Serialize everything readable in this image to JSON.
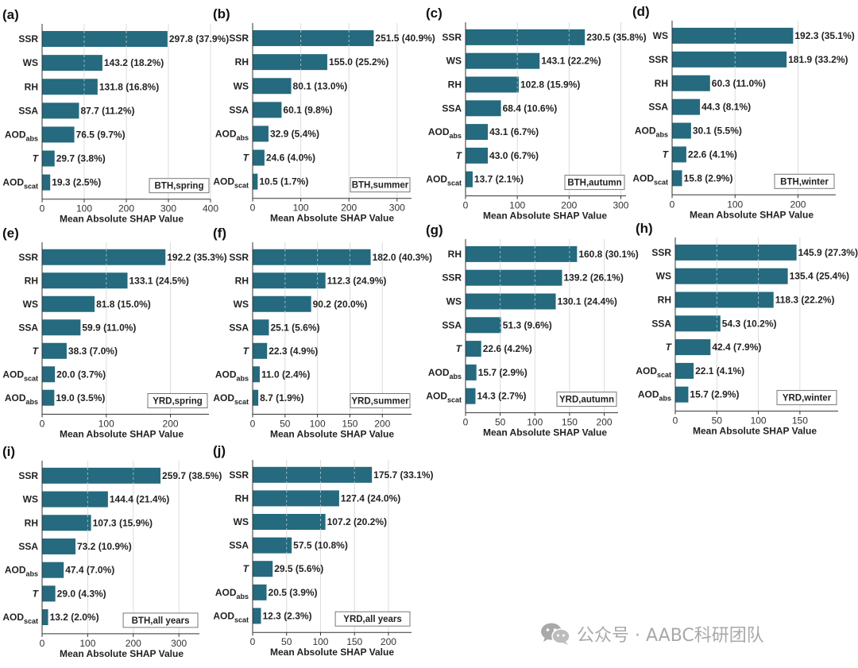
{
  "colors": {
    "bar": "#256a7e",
    "axis": "#333333",
    "grid": "#dcdcdc",
    "tag_border": "#777777",
    "watermark": "#a9a9a9"
  },
  "watermark": {
    "text": "公众号 · AABC科研团队",
    "icon": "wechat-icon"
  },
  "chart_data": [
    {
      "id": "a",
      "panel_label": "(a)",
      "type": "bar",
      "orientation": "horizontal",
      "tag": "BTH,spring",
      "xlabel": "Mean Absolute SHAP Value",
      "xlim": [
        0,
        400
      ],
      "xticks": [
        0,
        100,
        200,
        300,
        400
      ],
      "grid": true,
      "categories": [
        {
          "base": "SSR",
          "sub": ""
        },
        {
          "base": "WS",
          "sub": ""
        },
        {
          "base": "RH",
          "sub": ""
        },
        {
          "base": "SSA",
          "sub": ""
        },
        {
          "base": "AOD",
          "sub": "abs"
        },
        {
          "base": "T",
          "sub": "",
          "italic": true
        },
        {
          "base": "AOD",
          "sub": "scat"
        }
      ],
      "values": [
        297.8,
        143.2,
        131.8,
        87.7,
        76.5,
        29.7,
        19.3
      ],
      "value_labels": [
        "297.8 (37.9%)",
        "143.2 (18.2%)",
        "131.8 (16.8%)",
        "87.7 (11.2%)",
        "76.5 (9.7%)",
        "29.7 (3.8%)",
        "19.3 (2.5%)"
      ]
    },
    {
      "id": "b",
      "panel_label": "(b)",
      "type": "bar",
      "orientation": "horizontal",
      "tag": "BTH,summer",
      "xlabel": "Mean Absolute SHAP Value",
      "xlim": [
        0,
        330
      ],
      "xticks": [
        0,
        100,
        200,
        300
      ],
      "grid": true,
      "categories": [
        {
          "base": "SSR",
          "sub": ""
        },
        {
          "base": "RH",
          "sub": ""
        },
        {
          "base": "WS",
          "sub": ""
        },
        {
          "base": "SSA",
          "sub": ""
        },
        {
          "base": "AOD",
          "sub": "abs"
        },
        {
          "base": "T",
          "sub": "",
          "italic": true
        },
        {
          "base": "AOD",
          "sub": "scat"
        }
      ],
      "values": [
        251.5,
        155.0,
        80.1,
        60.1,
        32.9,
        24.6,
        10.5
      ],
      "value_labels": [
        "251.5 (40.9%)",
        "155.0 (25.2%)",
        "80.1 (13.0%)",
        "60.1 (9.8%)",
        "32.9 (5.4%)",
        "24.6 (4.0%)",
        "10.5 (1.7%)"
      ]
    },
    {
      "id": "c",
      "panel_label": "(c)",
      "type": "bar",
      "orientation": "horizontal",
      "tag": "BTH,autumn",
      "xlabel": "Mean Absolute SHAP Value",
      "xlim": [
        0,
        310
      ],
      "xticks": [
        0,
        100,
        200,
        300
      ],
      "grid": true,
      "categories": [
        {
          "base": "SSR",
          "sub": ""
        },
        {
          "base": "WS",
          "sub": ""
        },
        {
          "base": "RH",
          "sub": ""
        },
        {
          "base": "SSA",
          "sub": ""
        },
        {
          "base": "AOD",
          "sub": "abs"
        },
        {
          "base": "T",
          "sub": "",
          "italic": true
        },
        {
          "base": "AOD",
          "sub": "scat"
        }
      ],
      "values": [
        230.5,
        143.1,
        102.8,
        68.4,
        43.1,
        43.0,
        13.7
      ],
      "value_labels": [
        "230.5 (35.8%)",
        "143.1 (22.2%)",
        "102.8 (15.9%)",
        "68.4 (10.6%)",
        "43.1 (6.7%)",
        "43.0 (6.7%)",
        "13.7 (2.1%)"
      ]
    },
    {
      "id": "d",
      "panel_label": "(d)",
      "type": "bar",
      "orientation": "horizontal",
      "tag": "BTH,winter",
      "xlabel": "Mean Absolute SHAP Value",
      "xlim": [
        0,
        260
      ],
      "xticks": [
        0,
        100,
        200
      ],
      "grid": true,
      "categories": [
        {
          "base": "WS",
          "sub": ""
        },
        {
          "base": "SSR",
          "sub": ""
        },
        {
          "base": "RH",
          "sub": ""
        },
        {
          "base": "SSA",
          "sub": ""
        },
        {
          "base": "AOD",
          "sub": "abs"
        },
        {
          "base": "T",
          "sub": "",
          "italic": true
        },
        {
          "base": "AOD",
          "sub": "scat"
        }
      ],
      "values": [
        192.3,
        181.9,
        60.3,
        44.3,
        30.1,
        22.6,
        15.8
      ],
      "value_labels": [
        "192.3 (35.1%)",
        "181.9 (33.2%)",
        "60.3 (11.0%)",
        "44.3 (8.1%)",
        "30.1 (5.5%)",
        "22.6 (4.1%)",
        "15.8 (2.9%)"
      ]
    },
    {
      "id": "e",
      "panel_label": "(e)",
      "type": "bar",
      "orientation": "horizontal",
      "tag": "YRD,spring",
      "xlabel": "Mean Absolute SHAP Value",
      "xlim": [
        0,
        260
      ],
      "xticks": [
        0,
        100,
        200
      ],
      "grid": true,
      "categories": [
        {
          "base": "SSR",
          "sub": ""
        },
        {
          "base": "RH",
          "sub": ""
        },
        {
          "base": "WS",
          "sub": ""
        },
        {
          "base": "SSA",
          "sub": ""
        },
        {
          "base": "T",
          "sub": "",
          "italic": true
        },
        {
          "base": "AOD",
          "sub": "scat"
        },
        {
          "base": "AOD",
          "sub": "abs"
        }
      ],
      "values": [
        192.2,
        133.1,
        81.8,
        59.9,
        38.3,
        20.0,
        19.0
      ],
      "value_labels": [
        "192.2 (35.3%)",
        "133.1 (24.5%)",
        "81.8 (15.0%)",
        "59.9 (11.0%)",
        "38.3 (7.0%)",
        "20.0 (3.7%)",
        "19.0 (3.5%)"
      ]
    },
    {
      "id": "f",
      "panel_label": "(f)",
      "type": "bar",
      "orientation": "horizontal",
      "tag": "YRD,summer",
      "xlabel": "Mean Absolute SHAP Value",
      "xlim": [
        0,
        245
      ],
      "xticks": [
        0,
        50,
        100,
        150,
        200
      ],
      "grid": true,
      "categories": [
        {
          "base": "SSR",
          "sub": ""
        },
        {
          "base": "RH",
          "sub": ""
        },
        {
          "base": "WS",
          "sub": ""
        },
        {
          "base": "SSA",
          "sub": ""
        },
        {
          "base": "T",
          "sub": "",
          "italic": true
        },
        {
          "base": "AOD",
          "sub": "abs"
        },
        {
          "base": "AOD",
          "sub": "scat"
        }
      ],
      "values": [
        182.0,
        112.3,
        90.2,
        25.1,
        22.3,
        11.0,
        8.7
      ],
      "value_labels": [
        "182.0 (40.3%)",
        "112.3 (24.9%)",
        "90.2 (20.0%)",
        "25.1 (5.6%)",
        "22.3 (4.9%)",
        "11.0 (2.4%)",
        "8.7 (1.9%)"
      ]
    },
    {
      "id": "g",
      "panel_label": "(g)",
      "type": "bar",
      "orientation": "horizontal",
      "tag": "YRD,autumn",
      "xlabel": "Mean Absolute SHAP Value",
      "xlim": [
        0,
        220
      ],
      "xticks": [
        0,
        50,
        100,
        150,
        200
      ],
      "grid": true,
      "categories": [
        {
          "base": "RH",
          "sub": ""
        },
        {
          "base": "SSR",
          "sub": ""
        },
        {
          "base": "WS",
          "sub": ""
        },
        {
          "base": "SSA",
          "sub": ""
        },
        {
          "base": "T",
          "sub": "",
          "italic": true
        },
        {
          "base": "AOD",
          "sub": "abs"
        },
        {
          "base": "AOD",
          "sub": "scat"
        }
      ],
      "values": [
        160.8,
        139.2,
        130.1,
        51.3,
        22.6,
        15.7,
        14.3
      ],
      "value_labels": [
        "160.8 (30.1%)",
        "139.2 (26.1%)",
        "130.1 (24.4%)",
        "51.3 (9.6%)",
        "22.6 (4.2%)",
        "15.7 (2.9%)",
        "14.3 (2.7%)"
      ]
    },
    {
      "id": "h",
      "panel_label": "(h)",
      "type": "bar",
      "orientation": "horizontal",
      "tag": "YRD,winter",
      "xlabel": "Mean Absolute SHAP Value",
      "xlim": [
        0,
        196
      ],
      "xticks": [
        0,
        50,
        100,
        150
      ],
      "grid": true,
      "categories": [
        {
          "base": "SSR",
          "sub": ""
        },
        {
          "base": "WS",
          "sub": ""
        },
        {
          "base": "RH",
          "sub": ""
        },
        {
          "base": "SSA",
          "sub": ""
        },
        {
          "base": "T",
          "sub": "",
          "italic": true
        },
        {
          "base": "AOD",
          "sub": "scat"
        },
        {
          "base": "AOD",
          "sub": "abs"
        }
      ],
      "values": [
        145.9,
        135.4,
        118.3,
        54.3,
        42.4,
        22.1,
        15.7
      ],
      "value_labels": [
        "145.9 (27.3%)",
        "135.4 (25.4%)",
        "118.3 (22.2%)",
        "54.3 (10.2%)",
        "42.4 (7.9%)",
        "22.1 (4.1%)",
        "15.7 (2.9%)"
      ]
    },
    {
      "id": "i",
      "panel_label": "(i)",
      "type": "bar",
      "orientation": "horizontal",
      "tag": "BTH,all years",
      "xlabel": "Mean Absolute SHAP Value",
      "xlim": [
        0,
        345
      ],
      "xticks": [
        0,
        100,
        200,
        300
      ],
      "grid": true,
      "categories": [
        {
          "base": "SSR",
          "sub": ""
        },
        {
          "base": "WS",
          "sub": ""
        },
        {
          "base": "RH",
          "sub": ""
        },
        {
          "base": "SSA",
          "sub": ""
        },
        {
          "base": "AOD",
          "sub": "abs"
        },
        {
          "base": "T",
          "sub": "",
          "italic": true
        },
        {
          "base": "AOD",
          "sub": "scat"
        }
      ],
      "values": [
        259.7,
        144.4,
        107.3,
        73.2,
        47.4,
        29.0,
        13.2
      ],
      "value_labels": [
        "259.7 (38.5%)",
        "144.4 (21.4%)",
        "107.3 (15.9%)",
        "73.2 (10.9%)",
        "47.4 (7.0%)",
        "29.0 (4.3%)",
        "13.2 (2.0%)"
      ]
    },
    {
      "id": "j",
      "panel_label": "(j)",
      "type": "bar",
      "orientation": "horizontal",
      "tag": "YRD,all years",
      "xlabel": "Mean Absolute SHAP Value",
      "xlim": [
        0,
        234
      ],
      "xticks": [
        0,
        50,
        100,
        150,
        200
      ],
      "grid": true,
      "categories": [
        {
          "base": "SSR",
          "sub": ""
        },
        {
          "base": "RH",
          "sub": ""
        },
        {
          "base": "WS",
          "sub": ""
        },
        {
          "base": "SSA",
          "sub": ""
        },
        {
          "base": "T",
          "sub": "",
          "italic": true
        },
        {
          "base": "AOD",
          "sub": "abs"
        },
        {
          "base": "AOD",
          "sub": "scat"
        }
      ],
      "values": [
        175.7,
        127.4,
        107.2,
        57.5,
        29.5,
        20.5,
        12.3
      ],
      "value_labels": [
        "175.7 (33.1%)",
        "127.4 (24.0%)",
        "107.2 (20.2%)",
        "57.5 (10.8%)",
        "29.5 (5.6%)",
        "20.5 (3.9%)",
        "12.3 (2.3%)"
      ]
    }
  ]
}
